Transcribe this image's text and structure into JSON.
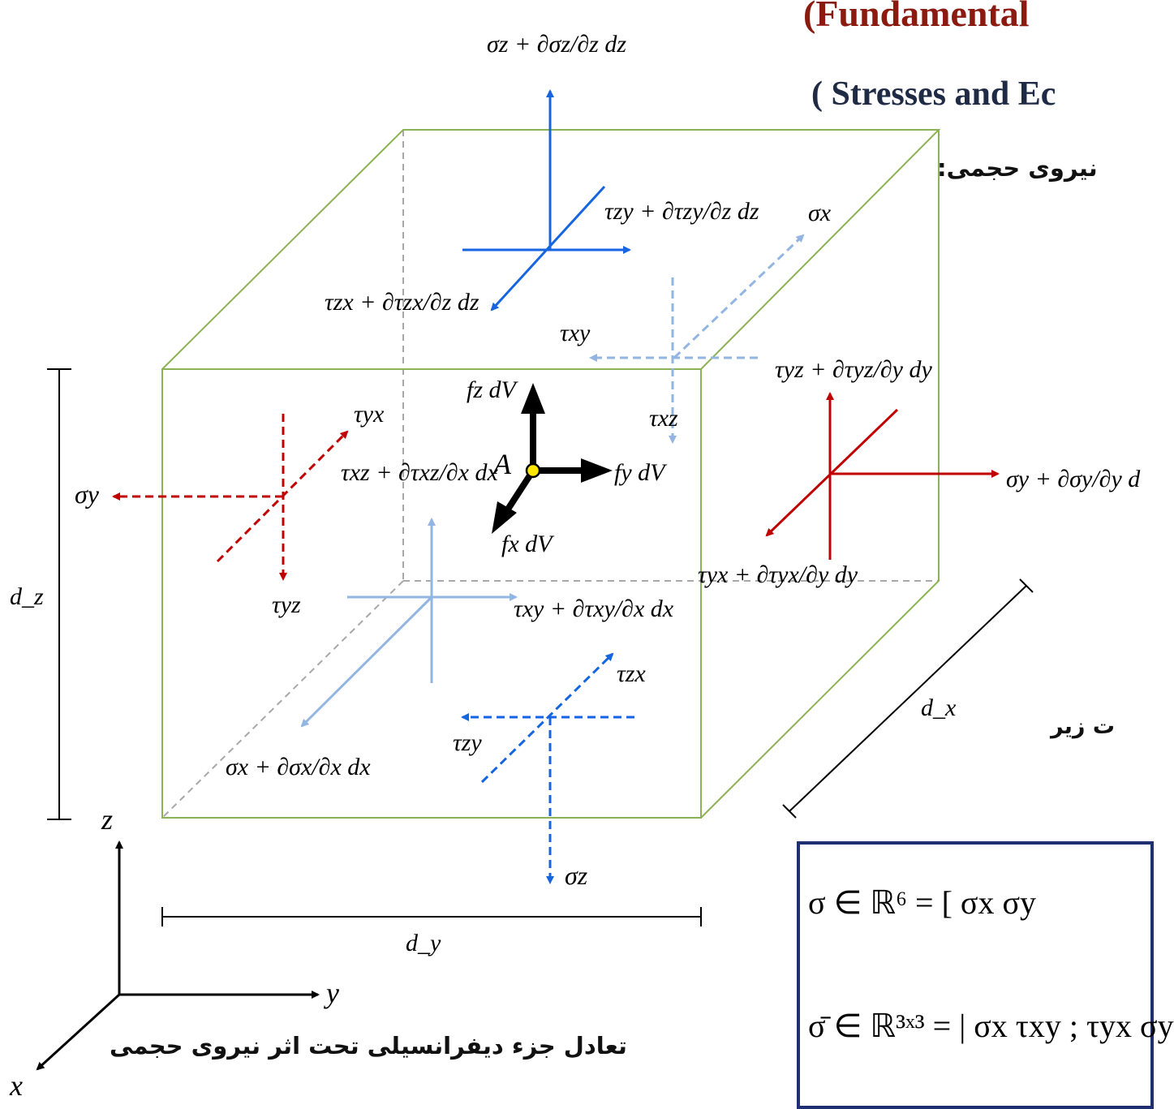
{
  "header": {
    "title_line1": "(Fundamental",
    "title_line2": "(  Stresses and Ec",
    "subtitle_fa": "نیروی حجمی:",
    "body_fa": "ت زیر"
  },
  "caption_fa": "تعادل جزء دیفرانسیلی تحت اثر نیروی حجمی",
  "colors": {
    "cube_edge": "#8db255",
    "hidden_edge": "#a8a8a8",
    "blue_dark": "#1565e0",
    "blue_light": "#92b5e2",
    "red": "#c00000",
    "body_force": "#000000",
    "point_A": "#ffe600",
    "title_red": "#8b1a10",
    "box_border": "#1f3070"
  },
  "labels": {
    "point": "A",
    "axis_x": "x",
    "axis_y": "y",
    "axis_z": "z",
    "dim_x": "d_x",
    "dim_y": "d_y",
    "dim_z": "d_z"
  },
  "stress_labels": {
    "sigma_z_top": "σz + ∂σz/∂z dz",
    "tau_zy_top": "τzy + ∂τzy/∂z dz",
    "tau_zx_top": "τzx + ∂τzx/∂z dz",
    "sigma_x_back": "σx",
    "tau_xy_back": "τxy",
    "tau_xz_back": "τxz",
    "tau_yz_right": "τyz + ∂τyz/∂y dy",
    "sigma_y_right": "σy + ∂σy/∂y d",
    "tau_yx_right": "τyx + ∂τyx/∂y dy",
    "sigma_y_left": "σy",
    "tau_yx_left": "τyx",
    "tau_yz_left": "τyz",
    "tau_xz_front": "τxz + ∂τxz/∂x dx",
    "tau_xy_front": "τxy + ∂τxy/∂x dx",
    "sigma_x_front": "σx + ∂σx/∂x dx",
    "tau_zx_bottom": "τzx",
    "tau_zy_bottom": "τzy",
    "sigma_z_bottom": "σz",
    "body_force_z": "fz dV",
    "body_force_y": "fy dV",
    "body_force_x": "fx dV"
  },
  "matrix": {
    "vec_label": "σ ∈ ℝ⁶ = [ σx  σy",
    "mat_label": "σ̄ ∈ ℝ³ˣ³ = | σx  τxy ; τyx  σy"
  }
}
